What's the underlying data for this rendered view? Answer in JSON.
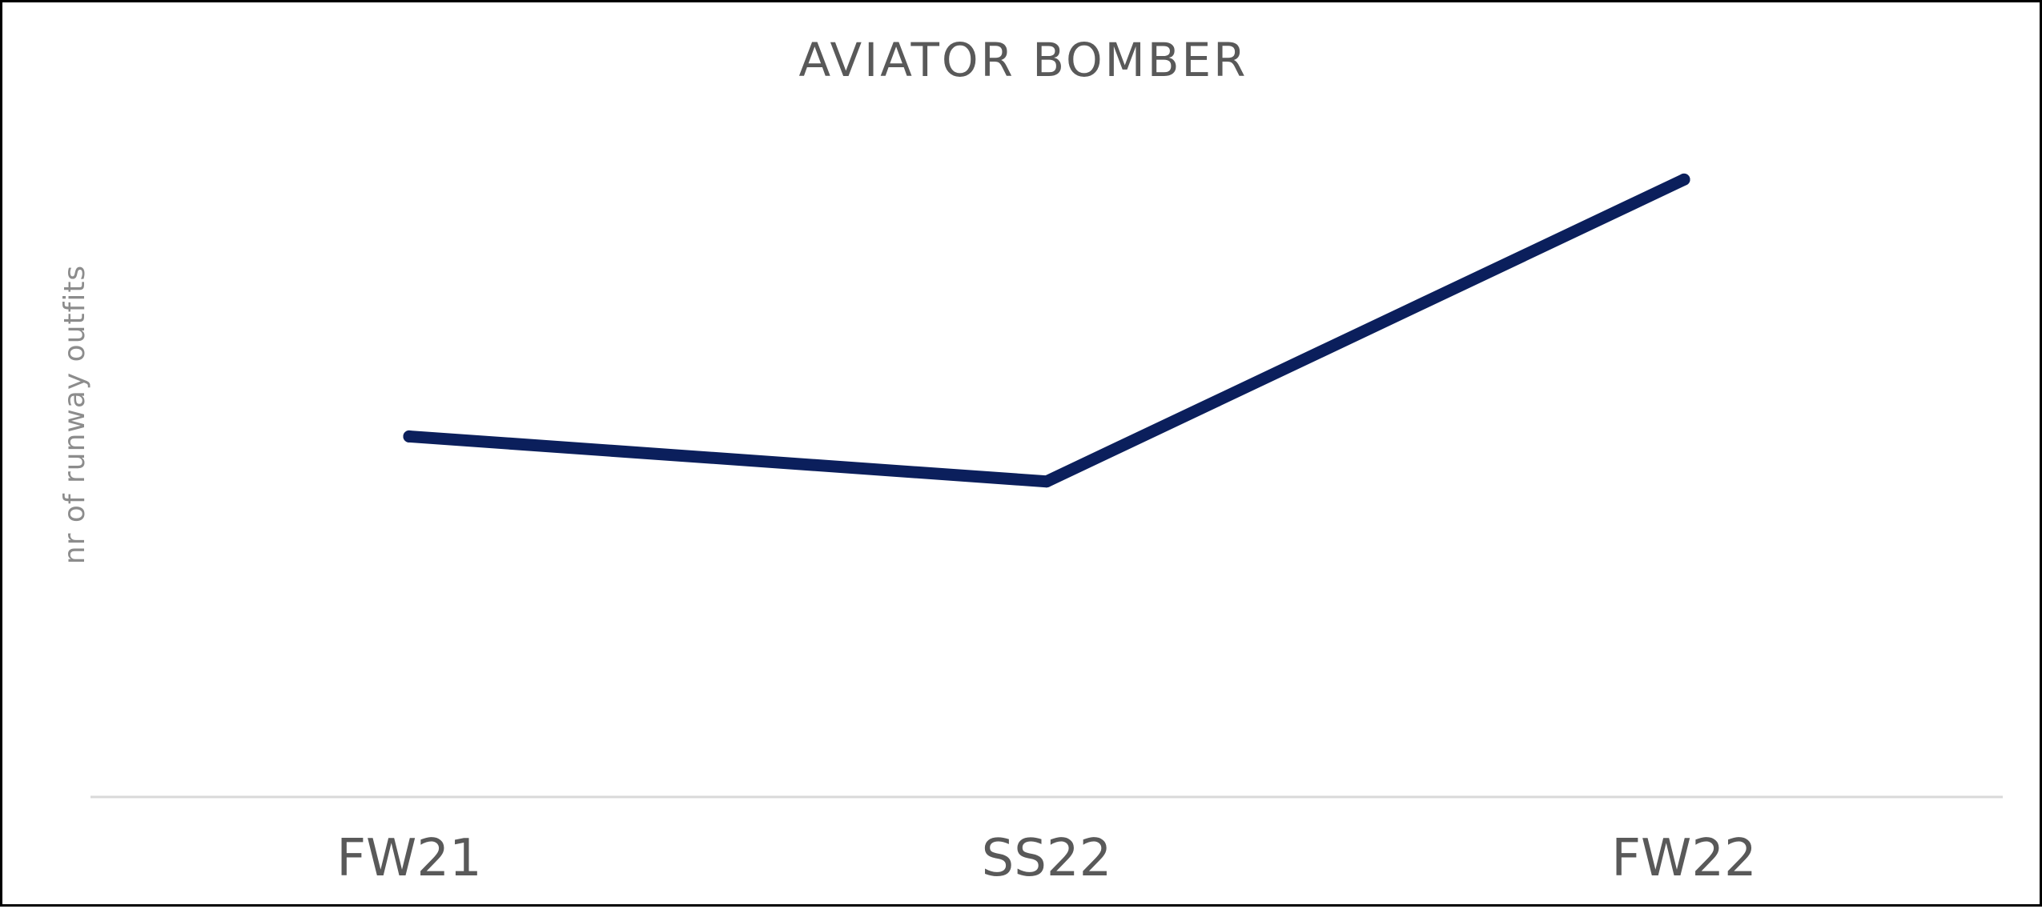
{
  "chart_data": {
    "type": "line",
    "title": "AVIATOR BOMBER",
    "ylabel": "nr of runway outfits",
    "xlabel": "",
    "categories": [
      "FW21",
      "SS22",
      "FW22"
    ],
    "series": [
      {
        "values": [
          11,
          10,
          16.7
        ]
      }
    ],
    "ylim": [
      3,
      18.5
    ],
    "grid": false,
    "legend": "none",
    "colors": {
      "line": "#0b1f5c",
      "axis": "#d9d9d9",
      "text": "#595959",
      "ylabel": "#8c8c8c"
    }
  }
}
